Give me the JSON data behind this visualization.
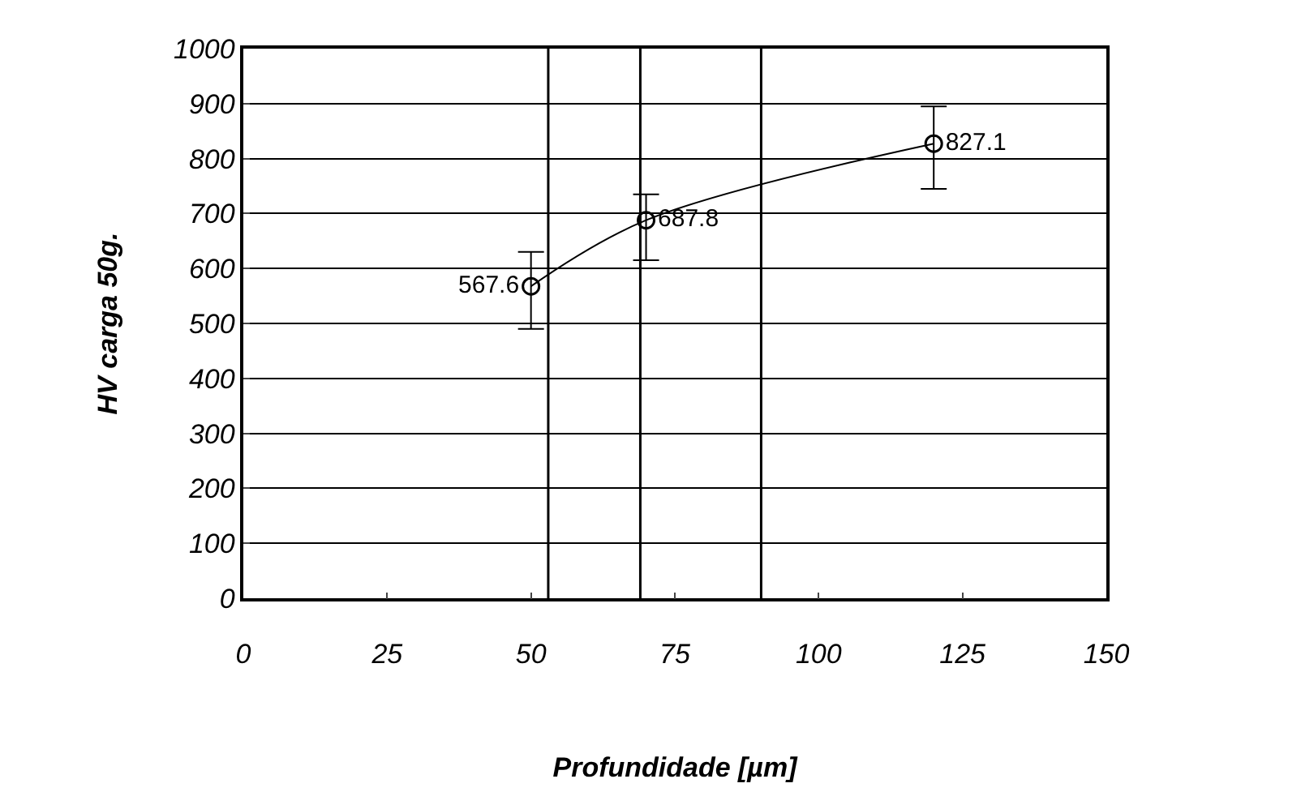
{
  "chart_data": {
    "type": "line",
    "xlabel": "Profundidade [µm]",
    "ylabel": "HV carga 50g.",
    "x": [
      50,
      70,
      120
    ],
    "series": [
      {
        "color": "#000000",
        "values": [
          567.6,
          687.8,
          827.1
        ],
        "errors": [
          [
            490,
            630
          ],
          [
            615,
            735
          ],
          [
            745,
            895
          ]
        ]
      }
    ],
    "data_labels": true,
    "marker": "circle",
    "line_style": "solid",
    "grid": "y",
    "xlim": [
      0,
      150
    ],
    "xticks": [
      0,
      25,
      50,
      75,
      100,
      125,
      150
    ],
    "ylim": [
      0,
      1000
    ],
    "yticks": [
      0,
      100,
      200,
      300,
      400,
      500,
      600,
      700,
      800,
      900,
      1000
    ],
    "ref_lines": [
      {
        "axis": "x",
        "value": 53,
        "color": "#000000"
      },
      {
        "axis": "x",
        "value": 69,
        "color": "#000000"
      },
      {
        "axis": "x",
        "value": 90,
        "color": "#000000"
      }
    ]
  }
}
